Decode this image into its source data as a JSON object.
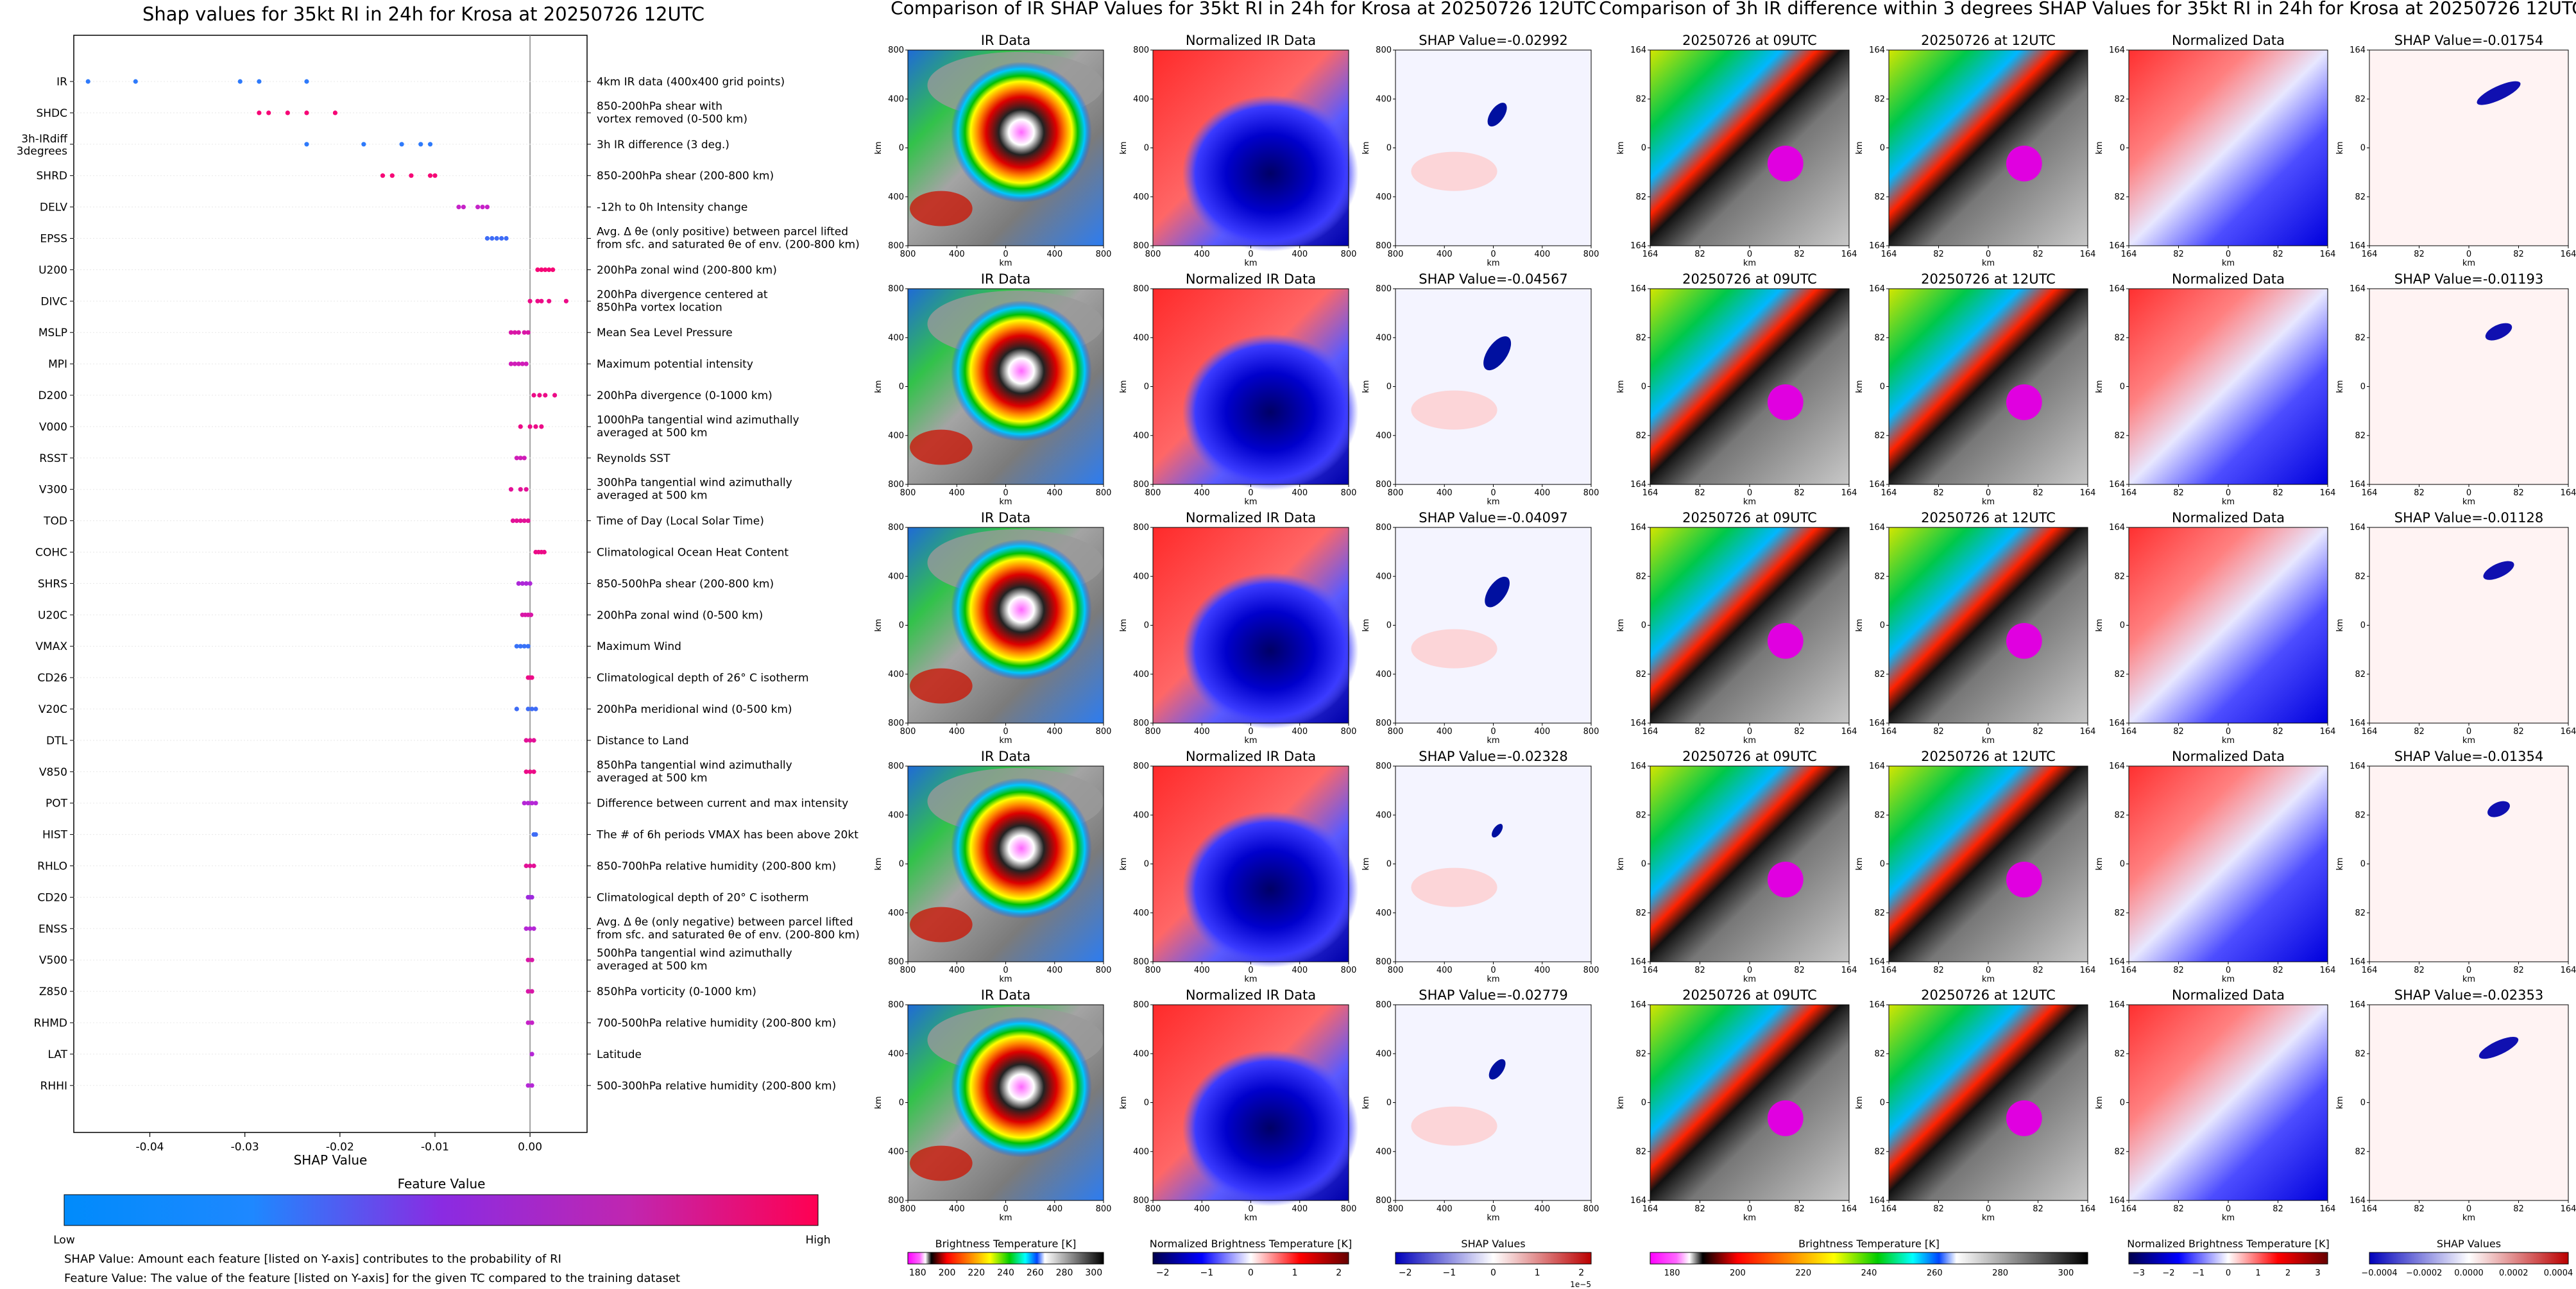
{
  "left": {
    "title": "Shap values for 35kt RI in 24h for Krosa at 20250726 12UTC",
    "xlabel": "SHAP Value",
    "colorbar_title": "Feature Value",
    "colorbar_low": "Low",
    "colorbar_high": "High",
    "footnote1": "SHAP Value: Amount each feature [listed on Y-axis] contributes to the probability of RI",
    "footnote2": "Feature Value: The value of the feature [listed on Y-axis] for the given TC compared to the training dataset"
  },
  "chart_data": [
    {
      "type": "scatter",
      "chart": "shap-beeswarm",
      "title": "Shap values for 35kt RI in 24h for Krosa at 20250726 12UTC",
      "xlabel": "SHAP Value",
      "ylabel": "",
      "xlim": [
        -0.048,
        0.006
      ],
      "xticks": [
        -0.04,
        -0.03,
        -0.02,
        -0.01,
        0.0
      ],
      "xtick_labels": [
        "-0.04",
        "-0.03",
        "-0.02",
        "-0.01",
        "0.00"
      ],
      "colormap": [
        "#1e88ff",
        "#8a2be2",
        "#c026d3",
        "#ff0066"
      ],
      "features": [
        {
          "name": "IR",
          "desc": [
            "4km IR data (400x400 grid points)"
          ],
          "points": [
            -0.0465,
            -0.0415,
            -0.0305,
            -0.0285,
            -0.0235
          ],
          "colors": [
            0.05,
            0.05,
            0.05,
            0.05,
            0.05
          ]
        },
        {
          "name": "SHDC",
          "desc": [
            "850-200hPa shear with",
            "vortex removed (0-500 km)"
          ],
          "points": [
            -0.0285,
            -0.0275,
            -0.0255,
            -0.0235,
            -0.0205
          ],
          "colors": [
            0.95,
            0.95,
            0.95,
            0.95,
            0.95
          ]
        },
        {
          "name": "3h-IRdiff",
          "name2": "3degrees",
          "desc": [
            "3h IR difference (3 deg.)"
          ],
          "points": [
            -0.0235,
            -0.0175,
            -0.0135,
            -0.0115,
            -0.0105
          ],
          "colors": [
            0.05,
            0.05,
            0.05,
            0.05,
            0.05
          ]
        },
        {
          "name": "SHRD",
          "desc": [
            "850-200hPa shear (200-800 km)"
          ],
          "points": [
            -0.0155,
            -0.0145,
            -0.0125,
            -0.0105,
            -0.01
          ],
          "colors": [
            0.95,
            0.95,
            0.95,
            0.95,
            0.95
          ]
        },
        {
          "name": "DELV",
          "desc": [
            "-12h to 0h Intensity change"
          ],
          "points": [
            -0.0075,
            -0.007,
            -0.0055,
            -0.005,
            -0.0045
          ],
          "colors": [
            0.7,
            0.7,
            0.7,
            0.7,
            0.7
          ]
        },
        {
          "name": "EPSS",
          "desc": [
            "Avg. Δ θe (only positive) between parcel lifted",
            "from sfc. and saturated θe of env. (200-800 km)"
          ],
          "points": [
            -0.0045,
            -0.004,
            -0.0035,
            -0.003,
            -0.0025
          ],
          "colors": [
            0.1,
            0.1,
            0.1,
            0.1,
            0.1
          ]
        },
        {
          "name": "U200",
          "desc": [
            "200hPa zonal wind (200-800 km)"
          ],
          "points": [
            0.0008,
            0.0012,
            0.0016,
            0.002,
            0.0024
          ],
          "colors": [
            0.95,
            0.95,
            0.95,
            0.95,
            0.95
          ]
        },
        {
          "name": "DIVC",
          "desc": [
            "200hPa divergence centered at",
            "850hPa vortex location"
          ],
          "points": [
            0.0,
            0.0008,
            0.0012,
            0.002,
            0.0038
          ],
          "colors": [
            0.9,
            0.9,
            0.9,
            0.9,
            0.9
          ]
        },
        {
          "name": "MSLP",
          "desc": [
            "Mean Sea Level Pressure"
          ],
          "points": [
            -0.002,
            -0.0016,
            -0.0012,
            -0.0006,
            -0.0002
          ],
          "colors": [
            0.8,
            0.8,
            0.8,
            0.8,
            0.8
          ]
        },
        {
          "name": "MPI",
          "desc": [
            "Maximum potential intensity"
          ],
          "points": [
            -0.002,
            -0.0016,
            -0.0012,
            -0.0008,
            -0.0004
          ],
          "colors": [
            0.75,
            0.75,
            0.75,
            0.75,
            0.75
          ]
        },
        {
          "name": "D200",
          "desc": [
            "200hPa divergence (0-1000 km)"
          ],
          "points": [
            0.0004,
            0.001,
            0.0016,
            0.0026
          ],
          "colors": [
            0.9,
            0.9,
            0.9,
            0.9
          ]
        },
        {
          "name": "V000",
          "desc": [
            "1000hPa tangential wind azimuthally",
            "averaged at 500 km"
          ],
          "points": [
            -0.001,
            0.0,
            0.0006,
            0.0012
          ],
          "colors": [
            0.9,
            0.9,
            0.9,
            0.9
          ]
        },
        {
          "name": "RSST",
          "desc": [
            "Reynolds SST"
          ],
          "points": [
            -0.0014,
            -0.001,
            -0.0006
          ],
          "colors": [
            0.75,
            0.75,
            0.75
          ]
        },
        {
          "name": "V300",
          "desc": [
            "300hPa tangential wind azimuthally",
            "averaged at 500 km"
          ],
          "points": [
            -0.002,
            -0.001,
            -0.0004
          ],
          "colors": [
            0.85,
            0.85,
            0.85
          ]
        },
        {
          "name": "TOD",
          "desc": [
            "Time of Day (Local Solar Time)"
          ],
          "points": [
            -0.0018,
            -0.0014,
            -0.001,
            -0.0006,
            -0.0002
          ],
          "colors": [
            0.85,
            0.85,
            0.85,
            0.85,
            0.85
          ]
        },
        {
          "name": "COHC",
          "desc": [
            "Climatological Ocean Heat Content"
          ],
          "points": [
            0.0006,
            0.0009,
            0.0012,
            0.0015
          ],
          "colors": [
            0.9,
            0.9,
            0.9,
            0.9
          ]
        },
        {
          "name": "SHRS",
          "desc": [
            "850-500hPa shear (200-800 km)"
          ],
          "points": [
            -0.0012,
            -0.0008,
            -0.0004,
            0.0
          ],
          "colors": [
            0.55,
            0.55,
            0.55,
            0.55
          ]
        },
        {
          "name": "U20C",
          "desc": [
            "200hPa zonal wind (0-500 km)"
          ],
          "points": [
            -0.0008,
            -0.0005,
            -0.0002,
            0.0001
          ],
          "colors": [
            0.8,
            0.8,
            0.8,
            0.8
          ]
        },
        {
          "name": "VMAX",
          "desc": [
            "Maximum Wind"
          ],
          "points": [
            -0.0014,
            -0.001,
            -0.0006,
            -0.0002
          ],
          "colors": [
            0.08,
            0.08,
            0.08,
            0.08
          ]
        },
        {
          "name": "CD26",
          "desc": [
            "Climatological depth of 26° C isotherm"
          ],
          "points": [
            -0.0002,
            0.0,
            0.0002
          ],
          "colors": [
            0.9,
            0.9,
            0.9
          ]
        },
        {
          "name": "V20C",
          "desc": [
            "200hPa meridional wind (0-500 km)"
          ],
          "points": [
            -0.0014,
            -0.0002,
            0.0002,
            0.0006
          ],
          "colors": [
            0.1,
            0.1,
            0.1,
            0.1
          ]
        },
        {
          "name": "DTL",
          "desc": [
            "Distance to Land"
          ],
          "points": [
            -0.0004,
            0.0,
            0.0004
          ],
          "colors": [
            0.85,
            0.85,
            0.85
          ]
        },
        {
          "name": "V850",
          "desc": [
            "850hPa tangential wind azimuthally",
            "averaged at 500 km"
          ],
          "points": [
            -0.0004,
            0.0,
            0.0004
          ],
          "colors": [
            0.9,
            0.9,
            0.9
          ]
        },
        {
          "name": "POT",
          "desc": [
            "Difference between current and max intensity"
          ],
          "points": [
            -0.0006,
            -0.0002,
            0.0002,
            0.0006
          ],
          "colors": [
            0.6,
            0.6,
            0.6,
            0.6
          ]
        },
        {
          "name": "HIST",
          "desc": [
            "The # of 6h periods VMAX has been above 20kt"
          ],
          "points": [
            0.0004,
            0.0006
          ],
          "colors": [
            0.1,
            0.1
          ]
        },
        {
          "name": "RHLO",
          "desc": [
            "850-700hPa relative humidity (200-800 km)"
          ],
          "points": [
            -0.0004,
            0.0,
            0.0004
          ],
          "colors": [
            0.85,
            0.85,
            0.85
          ]
        },
        {
          "name": "CD20",
          "desc": [
            "Climatological depth of 20° C isotherm"
          ],
          "points": [
            -0.0002,
            0.0,
            0.0002
          ],
          "colors": [
            0.45,
            0.45,
            0.45
          ]
        },
        {
          "name": "ENSS",
          "desc": [
            "Avg. Δ θe (only negative) between parcel lifted",
            "from sfc. and saturated θe of env. (200-800 km)"
          ],
          "points": [
            -0.0004,
            0.0,
            0.0004
          ],
          "colors": [
            0.6,
            0.6,
            0.6
          ]
        },
        {
          "name": "V500",
          "desc": [
            "500hPa tangential wind azimuthally",
            "averaged at 500 km"
          ],
          "points": [
            -0.0002,
            0.0002
          ],
          "colors": [
            0.8,
            0.8
          ]
        },
        {
          "name": "Z850",
          "desc": [
            "850hPa vorticity (0-1000 km)"
          ],
          "points": [
            -0.0002,
            0.0002
          ],
          "colors": [
            0.8,
            0.8
          ]
        },
        {
          "name": "RHMD",
          "desc": [
            "700-500hPa relative humidity (200-800 km)"
          ],
          "points": [
            -0.0002,
            0.0002
          ],
          "colors": [
            0.7,
            0.7
          ]
        },
        {
          "name": "LAT",
          "desc": [
            "Latitude"
          ],
          "points": [
            0.0002
          ],
          "colors": [
            0.6
          ]
        },
        {
          "name": "RHHI",
          "desc": [
            "500-300hPa relative humidity (200-800 km)"
          ],
          "points": [
            -0.0002,
            0.0002
          ],
          "colors": [
            0.6,
            0.6
          ]
        }
      ]
    },
    {
      "type": "heatmap",
      "chart": "ir-shap-grid",
      "title": "Comparison of IR SHAP Values for 35kt RI in 24h for Krosa at 20250726 12UTC",
      "columns": [
        "IR Data",
        "Normalized IR Data"
      ],
      "shap_titles": [
        "SHAP Value=-0.02992",
        "SHAP Value=-0.04567",
        "SHAP Value=-0.04097",
        "SHAP Value=-0.02328",
        "SHAP Value=-0.02779"
      ],
      "axis_label": "km",
      "x_ticks": [
        "800",
        "400",
        "0",
        "400",
        "800"
      ],
      "y_ticks": [
        "800",
        "400",
        "0",
        "400",
        "800"
      ],
      "colorbars": [
        {
          "label": "Brightness Temperature [K]",
          "ticks": [
            "180",
            "200",
            "220",
            "240",
            "260",
            "280",
            "300"
          ]
        },
        {
          "label": "Normalized Brightness Temperature [K]",
          "ticks": [
            "−2",
            "−1",
            "0",
            "1",
            "2"
          ]
        },
        {
          "label": "SHAP Values",
          "ticks": [
            "−2",
            "−1",
            "0",
            "1",
            "2"
          ],
          "exponent": "1e−5"
        }
      ]
    },
    {
      "type": "heatmap",
      "chart": "ir-diff-grid",
      "title": "Comparison of 3h IR difference within 3 degrees SHAP Values for 35kt RI in 24h for Krosa at 20250726 12UTC",
      "columns": [
        "20250726 at 09UTC",
        "20250726 at 12UTC",
        "Normalized Data"
      ],
      "shap_titles": [
        "SHAP Value=-0.01754",
        "SHAP Value=-0.01193",
        "SHAP Value=-0.01128",
        "SHAP Value=-0.01354",
        "SHAP Value=-0.02353"
      ],
      "axis_label": "km",
      "x_ticks": [
        "164",
        "82",
        "0",
        "82",
        "164"
      ],
      "y_ticks": [
        "164",
        "82",
        "0",
        "82",
        "164"
      ],
      "colorbars": [
        {
          "label": "Brightness Temperature [K]",
          "ticks": [
            "180",
            "200",
            "220",
            "240",
            "260",
            "280",
            "300"
          ]
        },
        {
          "label": "Normalized Brightness Temperature [K]",
          "ticks": [
            "−3",
            "−2",
            "−1",
            "0",
            "1",
            "2",
            "3"
          ]
        },
        {
          "label": "SHAP Values",
          "ticks": [
            "−0.0004",
            "−0.0002",
            "0.0000",
            "0.0002",
            "0.0004"
          ]
        }
      ]
    }
  ]
}
